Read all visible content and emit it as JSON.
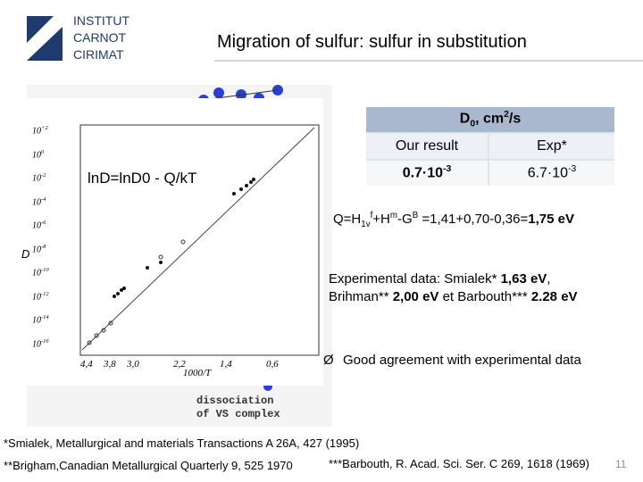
{
  "logo": [
    "INSTITUT",
    "CARNOT",
    "CIRIMAT"
  ],
  "title": "Migration of sulfur: sulfur in substitution",
  "figure": {
    "formula": "lnD=lnD0 - Q/kT",
    "y_axis_label": "D",
    "x_axis_label": "1000/T",
    "y_ticks": [
      {
        "base": "10",
        "exp": "+2"
      },
      {
        "base": "10",
        "exp": "0"
      },
      {
        "base": "10",
        "exp": "-2"
      },
      {
        "base": "10",
        "exp": "-4"
      },
      {
        "base": "10",
        "exp": "-6"
      },
      {
        "base": "10",
        "exp": "-8"
      },
      {
        "base": "10",
        "exp": "-10"
      },
      {
        "base": "10",
        "exp": "-12"
      },
      {
        "base": "10",
        "exp": "-14"
      },
      {
        "base": "10",
        "exp": "-16"
      }
    ],
    "x_ticks": [
      "4,4",
      "3,8",
      "3,0",
      "2,2",
      "1,4",
      "0,6"
    ],
    "caption": [
      "dissociation",
      "of VS complex"
    ]
  },
  "table": {
    "header": {
      "main": "D",
      "sub": "0",
      "rest": ", cm",
      "sup": "2",
      "end": "/s"
    },
    "columns": [
      "Our result",
      "Exp*"
    ],
    "rows": [
      [
        {
          "mant": "0.7·10",
          "exp": "-3"
        },
        {
          "mant": "6.7·10",
          "exp": "-3"
        }
      ]
    ]
  },
  "formula_line": [
    "Q=H",
    "1v",
    "f",
    "+H",
    "m",
    "-G",
    "B",
    " =1,41+0,70-0,36=",
    "1,75 eV"
  ],
  "experimental": [
    [
      "Experimental data: Smialek* ",
      "1,63 eV",
      ","
    ],
    [
      "Brihman** ",
      "2,00 eV",
      " et  Barbouth*** ",
      "2.28 eV"
    ]
  ],
  "bullet": {
    "symbol": "Ø",
    "text": "Good agreement with experimental data"
  },
  "footnotes": [
    "*Smialek, Metallurgical and materials Transactions A 26A, 427 (1995)",
    "**Brigham,Canadian Metallurgical Quarterly 9, 525 1970",
    "***Barbouth, R. Acad. Sci. Ser. C 269, 1618 (1969)"
  ],
  "page_number": "11"
}
